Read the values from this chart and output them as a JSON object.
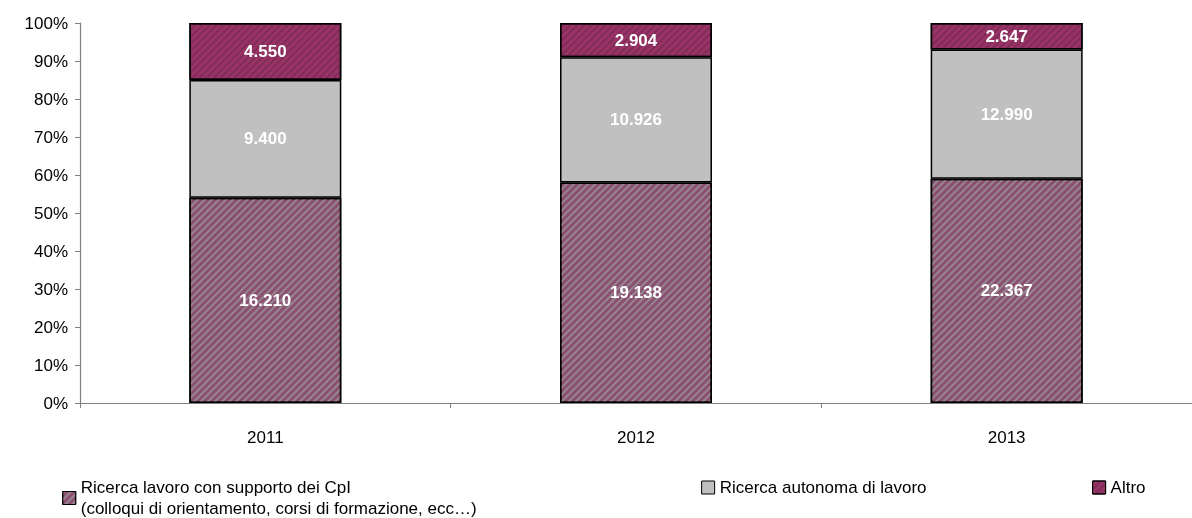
{
  "chart_data": {
    "type": "bar",
    "stacked": true,
    "categories": [
      "2011",
      "2012",
      "2013"
    ],
    "series": [
      {
        "name": "Ricerca lavoro con supporto dei CpI\n(colloqui di orientamento, corsi di formazione, ecc…)",
        "color": "#8c4f72",
        "values": [
          54,
          58,
          59
        ]
      },
      {
        "name": "Ricerca autonoma di lavoro",
        "color": "#c0c0c0",
        "values": [
          31,
          33,
          34
        ]
      },
      {
        "name": "Altro",
        "color": "#993366",
        "values": [
          15,
          9,
          7
        ]
      }
    ],
    "annotations": [
      "16.210",
      "9.400",
      "4.550",
      "19.138",
      "10.926",
      "2.904",
      "22.367",
      "12.990",
      "2.647"
    ],
    "ylim": [
      0,
      100
    ],
    "yticks": [
      {
        "value": 0,
        "label": "0%"
      },
      {
        "value": 10,
        "label": "10%"
      },
      {
        "value": 20,
        "label": "20%"
      },
      {
        "value": 30,
        "label": "30%"
      },
      {
        "value": 40,
        "label": "40%"
      },
      {
        "value": 50,
        "label": "50%"
      },
      {
        "value": 60,
        "label": "60%"
      },
      {
        "value": 70,
        "label": "70%"
      },
      {
        "value": 80,
        "label": "80%"
      },
      {
        "value": 90,
        "label": "90%"
      },
      {
        "value": 100,
        "label": "100%"
      }
    ],
    "grid": false,
    "legend": "bottom"
  }
}
